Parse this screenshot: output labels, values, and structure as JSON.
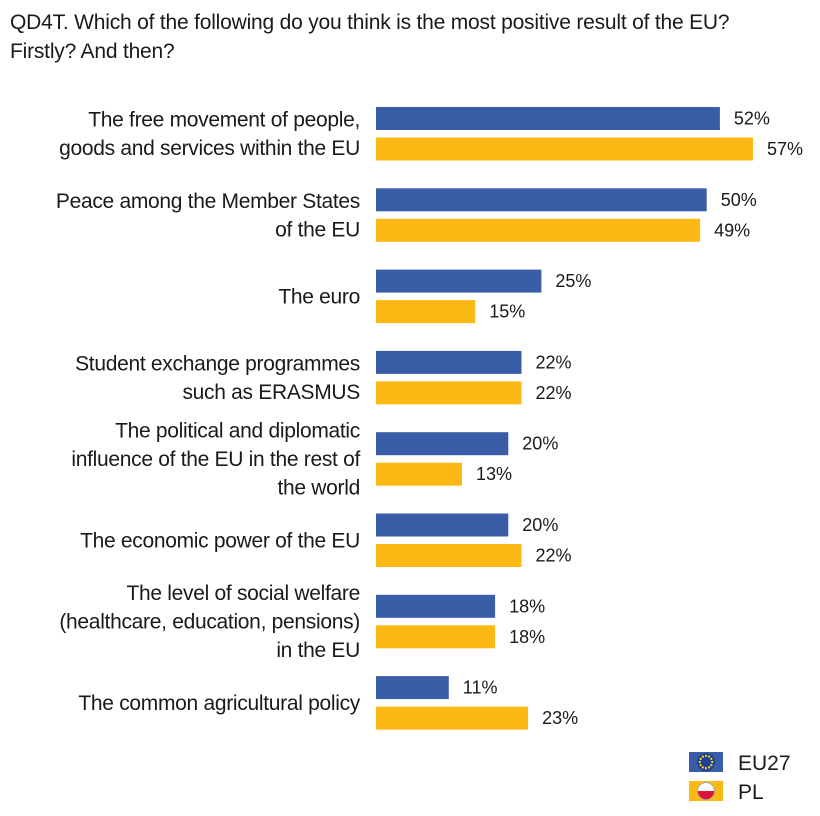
{
  "title_lines": [
    "QD4T. Which of the following do you think is the most positive result of the EU?",
    "Firstly? And then?"
  ],
  "chart_data": {
    "type": "bar",
    "orientation": "horizontal",
    "categories": [
      [
        "The free movement of people,",
        "goods and services within the EU"
      ],
      [
        "Peace among the Member States",
        "of the EU"
      ],
      [
        "The euro"
      ],
      [
        "Student exchange programmes",
        "such as ERASMUS"
      ],
      [
        "The political and diplomatic",
        "influence of the EU in the rest of",
        "the world"
      ],
      [
        "The economic power of the EU"
      ],
      [
        "The level of social welfare",
        "(healthcare, education, pensions)",
        "in the EU"
      ],
      [
        "The common agricultural policy"
      ]
    ],
    "series": [
      {
        "name": "EU27",
        "color": "#3a5da8",
        "values": [
          52,
          50,
          25,
          22,
          20,
          20,
          18,
          11
        ]
      },
      {
        "name": "PL",
        "color": "#fdb913",
        "values": [
          57,
          49,
          15,
          22,
          13,
          22,
          18,
          23
        ]
      }
    ],
    "value_suffix": "%",
    "xlim": [
      0,
      57
    ],
    "grid": false,
    "legend_position": "bottom-right",
    "legend_icons": [
      "eu-flag-icon",
      "poland-flag-icon"
    ]
  }
}
